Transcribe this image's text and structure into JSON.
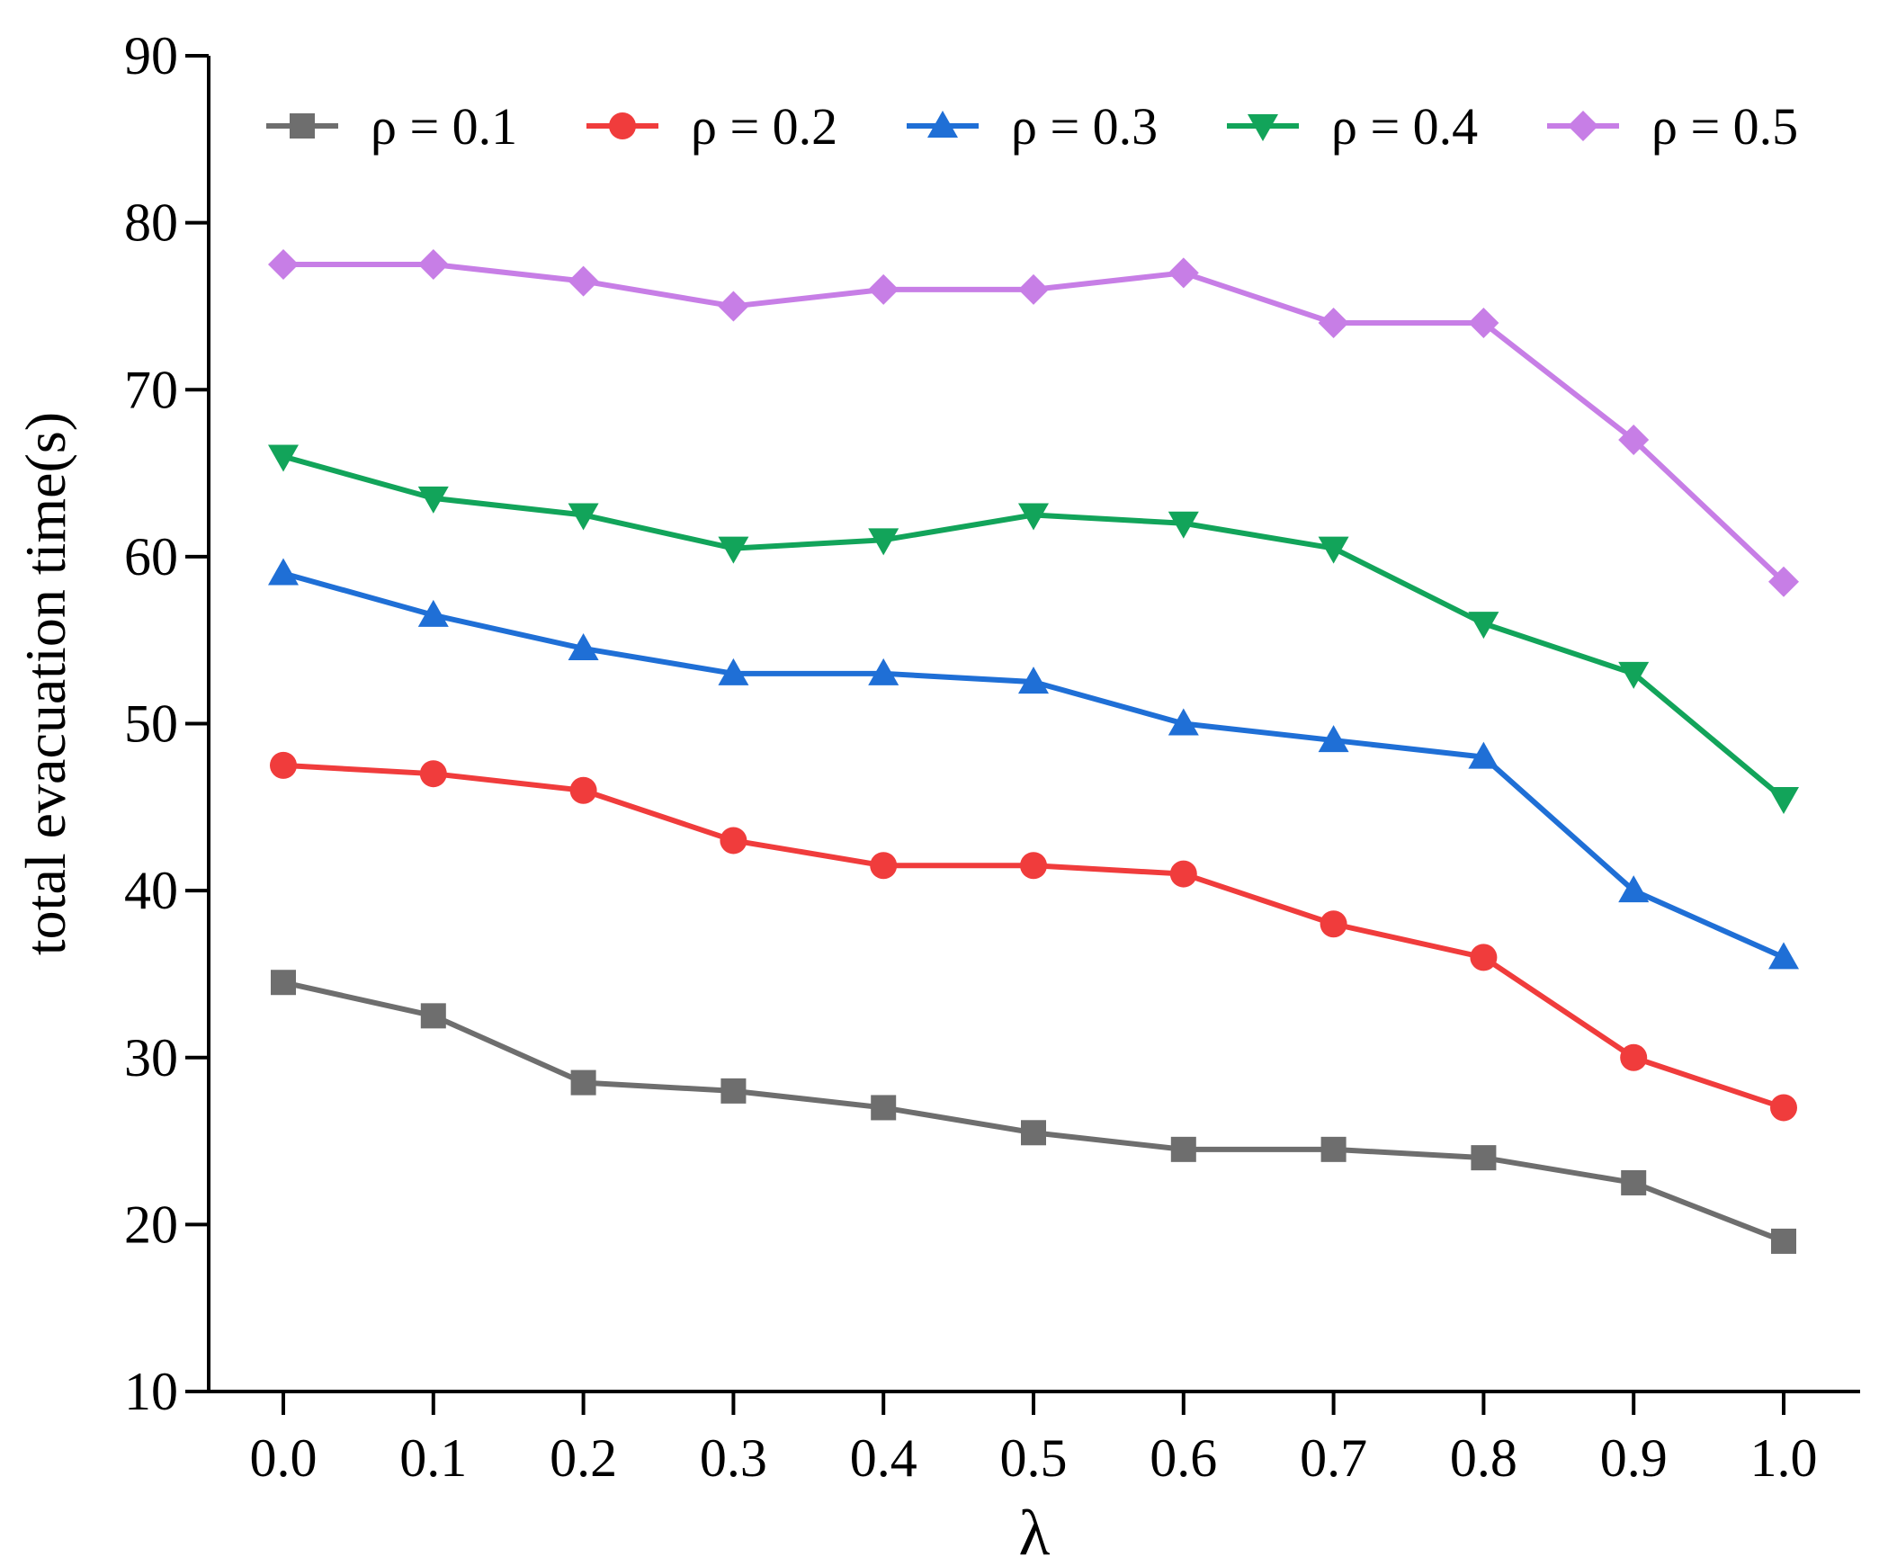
{
  "chart_data": {
    "type": "line",
    "xlabel": "λ",
    "ylabel": "total evacuation time(s)",
    "x": [
      0.0,
      0.1,
      0.2,
      0.3,
      0.4,
      0.5,
      0.6,
      0.7,
      0.8,
      0.9,
      1.0
    ],
    "x_tick_labels": [
      "0.0",
      "0.1",
      "0.2",
      "0.3",
      "0.4",
      "0.5",
      "0.6",
      "0.7",
      "0.8",
      "0.9",
      "1.0"
    ],
    "ylim": [
      10,
      90
    ],
    "y_ticks": [
      10,
      20,
      30,
      40,
      50,
      60,
      70,
      80,
      90
    ],
    "y_tick_labels": [
      "10",
      "20",
      "30",
      "40",
      "50",
      "60",
      "70",
      "80",
      "90"
    ],
    "grid": false,
    "legend_position": "top",
    "series": [
      {
        "name": "ρ = 0.1",
        "color": "#6e6e6e",
        "marker": "square",
        "values": [
          34.5,
          32.5,
          28.5,
          28,
          27,
          25.5,
          24.5,
          24.5,
          24,
          22.5,
          19
        ]
      },
      {
        "name": "ρ = 0.2",
        "color": "#f03c3c",
        "marker": "circle",
        "values": [
          47.5,
          47,
          46,
          43,
          41.5,
          41.5,
          41,
          38,
          36,
          30,
          27
        ]
      },
      {
        "name": "ρ = 0.3",
        "color": "#1f6fd6",
        "marker": "triangle-up",
        "values": [
          59,
          56.5,
          54.5,
          53,
          53,
          52.5,
          50,
          49,
          48,
          40,
          36
        ]
      },
      {
        "name": "ρ = 0.4",
        "color": "#12a45a",
        "marker": "triangle-down",
        "values": [
          66,
          63.5,
          62.5,
          60.5,
          61,
          62.5,
          62,
          60.5,
          56,
          53,
          45.5
        ]
      },
      {
        "name": "ρ = 0.5",
        "color": "#c77ee6",
        "marker": "diamond",
        "values": [
          77.5,
          77.5,
          76.5,
          75,
          76,
          76,
          77,
          74,
          74,
          67,
          58.5
        ]
      }
    ]
  }
}
